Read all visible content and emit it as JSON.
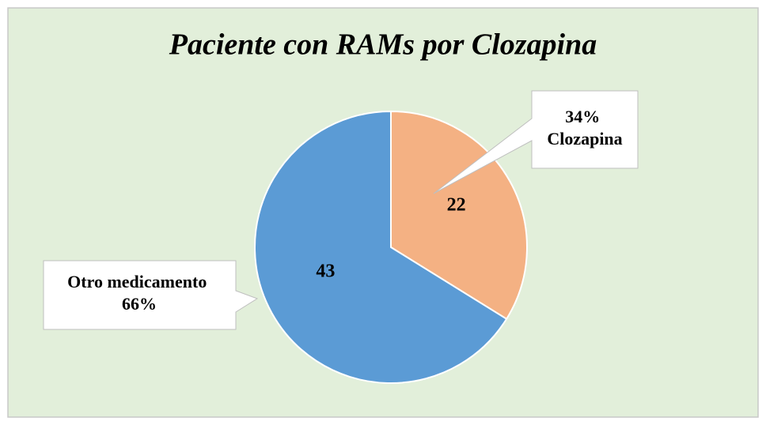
{
  "chart_data": {
    "type": "pie",
    "title": "Paciente con RAMs por Clozapina",
    "categories": [
      "Clozapina",
      "Otro medicamento"
    ],
    "values": [
      22,
      43
    ],
    "percent_labels": [
      "34%",
      "66%"
    ],
    "colors": [
      "#f4b183",
      "#5b9bd5"
    ]
  }
}
